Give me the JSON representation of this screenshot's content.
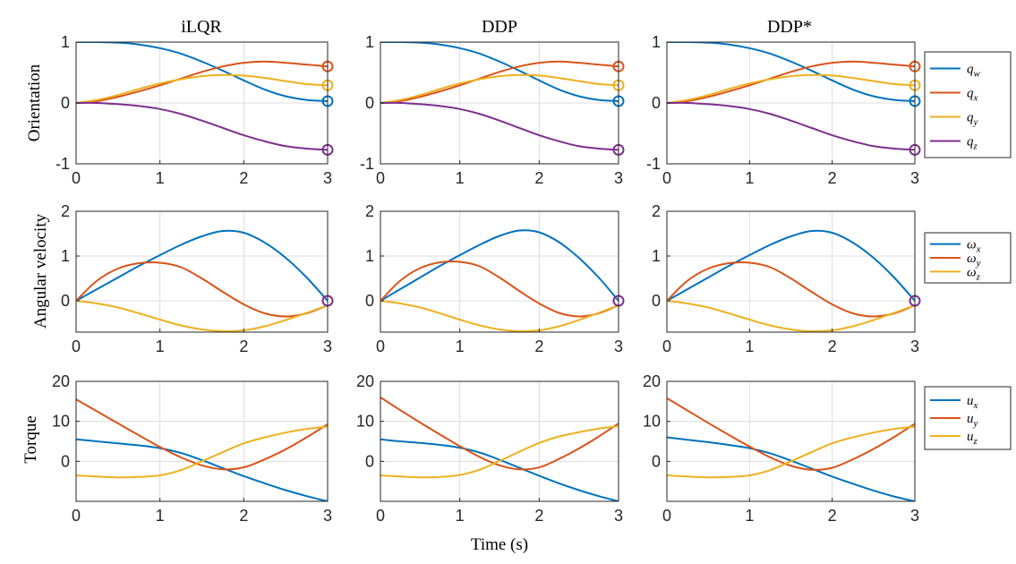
{
  "figure": {
    "xlabel": "Time (s)",
    "column_titles": [
      "iLQR",
      "DDP",
      "DDP*"
    ],
    "row_labels": [
      "Orientation",
      "Angular velocity",
      "Torque"
    ]
  },
  "colors": {
    "blue": "#0072BD",
    "orange": "#D95319",
    "yellow": "#EDB120",
    "purple": "#7E2F8E",
    "grid": "#dcdcdc",
    "axis": "#262626"
  },
  "legends": [
    {
      "entries": [
        {
          "base": "q",
          "sub": "w",
          "color": "#0072BD"
        },
        {
          "base": "q",
          "sub": "x",
          "color": "#D95319"
        },
        {
          "base": "q",
          "sub": "y",
          "color": "#EDB120"
        },
        {
          "base": "q",
          "sub": "z",
          "color": "#7E2F8E"
        }
      ]
    },
    {
      "entries": [
        {
          "base": "ω",
          "sub": "x",
          "color": "#0072BD"
        },
        {
          "base": "ω",
          "sub": "y",
          "color": "#D95319"
        },
        {
          "base": "ω",
          "sub": "z",
          "color": "#EDB120"
        }
      ]
    },
    {
      "entries": [
        {
          "base": "u",
          "sub": "x",
          "color": "#0072BD"
        },
        {
          "base": "u",
          "sub": "y",
          "color": "#D95319"
        },
        {
          "base": "u",
          "sub": "z",
          "color": "#EDB120"
        }
      ]
    }
  ],
  "chart_data": [
    {
      "type": "line",
      "row": 0,
      "col": 0,
      "title": "iLQR",
      "ylabel": "Orientation",
      "xlim": [
        0,
        3
      ],
      "ylim": [
        -1,
        1
      ],
      "xticks": [
        0,
        1,
        2,
        3
      ],
      "yticks": [
        -1,
        0,
        1
      ],
      "ytick_labels": [
        "-1",
        "0",
        "1"
      ],
      "x": [
        0,
        0.25,
        0.5,
        0.75,
        1.0,
        1.25,
        1.5,
        1.75,
        2.0,
        2.25,
        2.5,
        2.75,
        3.0
      ],
      "series": [
        {
          "name": "q_w",
          "color": "#0072BD",
          "values": [
            1.0,
            1.0,
            0.99,
            0.96,
            0.9,
            0.81,
            0.68,
            0.53,
            0.37,
            0.22,
            0.11,
            0.05,
            0.03
          ]
        },
        {
          "name": "q_x",
          "color": "#D95319",
          "values": [
            0,
            0.03,
            0.1,
            0.19,
            0.29,
            0.4,
            0.51,
            0.6,
            0.66,
            0.68,
            0.66,
            0.63,
            0.6
          ]
        },
        {
          "name": "q_y",
          "color": "#EDB120",
          "values": [
            0,
            0.05,
            0.13,
            0.23,
            0.32,
            0.39,
            0.44,
            0.46,
            0.45,
            0.41,
            0.36,
            0.31,
            0.29
          ]
        },
        {
          "name": "q_z",
          "color": "#7E2F8E",
          "values": [
            0,
            0.0,
            -0.02,
            -0.05,
            -0.1,
            -0.18,
            -0.29,
            -0.41,
            -0.53,
            -0.63,
            -0.71,
            -0.75,
            -0.77
          ]
        }
      ],
      "endpoint_markers": [
        {
          "x": 3,
          "y": 0.6,
          "color": "#D95319"
        },
        {
          "x": 3,
          "y": 0.29,
          "color": "#EDB120"
        },
        {
          "x": 3,
          "y": 0.03,
          "color": "#0072BD"
        },
        {
          "x": 3,
          "y": -0.77,
          "color": "#7E2F8E"
        }
      ]
    },
    {
      "type": "line",
      "row": 0,
      "col": 1,
      "title": "DDP",
      "ylabel": "",
      "xlim": [
        0,
        3
      ],
      "ylim": [
        -1,
        1
      ],
      "xticks": [
        0,
        1,
        2,
        3
      ],
      "yticks": [
        -1,
        0,
        1
      ],
      "ytick_labels": [
        "-1",
        "0",
        "1"
      ],
      "x": [
        0,
        0.25,
        0.5,
        0.75,
        1.0,
        1.25,
        1.5,
        1.75,
        2.0,
        2.25,
        2.5,
        2.75,
        3.0
      ],
      "series": [
        {
          "name": "q_w",
          "color": "#0072BD",
          "values": [
            1.0,
            1.0,
            0.99,
            0.96,
            0.9,
            0.81,
            0.68,
            0.53,
            0.37,
            0.22,
            0.11,
            0.05,
            0.03
          ]
        },
        {
          "name": "q_x",
          "color": "#D95319",
          "values": [
            0,
            0.03,
            0.1,
            0.19,
            0.29,
            0.4,
            0.51,
            0.6,
            0.66,
            0.68,
            0.66,
            0.63,
            0.6
          ]
        },
        {
          "name": "q_y",
          "color": "#EDB120",
          "values": [
            0,
            0.05,
            0.13,
            0.23,
            0.32,
            0.39,
            0.44,
            0.46,
            0.45,
            0.41,
            0.36,
            0.31,
            0.29
          ]
        },
        {
          "name": "q_z",
          "color": "#7E2F8E",
          "values": [
            0,
            0.0,
            -0.02,
            -0.05,
            -0.1,
            -0.18,
            -0.29,
            -0.41,
            -0.53,
            -0.63,
            -0.71,
            -0.75,
            -0.77
          ]
        }
      ],
      "endpoint_markers": [
        {
          "x": 3,
          "y": 0.6,
          "color": "#D95319"
        },
        {
          "x": 3,
          "y": 0.29,
          "color": "#EDB120"
        },
        {
          "x": 3,
          "y": 0.03,
          "color": "#0072BD"
        },
        {
          "x": 3,
          "y": -0.77,
          "color": "#7E2F8E"
        }
      ]
    },
    {
      "type": "line",
      "row": 0,
      "col": 2,
      "title": "DDP*",
      "ylabel": "",
      "xlim": [
        0,
        3
      ],
      "ylim": [
        -1,
        1
      ],
      "xticks": [
        0,
        1,
        2,
        3
      ],
      "yticks": [
        -1,
        0,
        1
      ],
      "ytick_labels": [
        "-1",
        "0",
        "1"
      ],
      "x": [
        0,
        0.25,
        0.5,
        0.75,
        1.0,
        1.25,
        1.5,
        1.75,
        2.0,
        2.25,
        2.5,
        2.75,
        3.0
      ],
      "series": [
        {
          "name": "q_w",
          "color": "#0072BD",
          "values": [
            1.0,
            1.0,
            0.99,
            0.96,
            0.9,
            0.81,
            0.68,
            0.53,
            0.37,
            0.22,
            0.11,
            0.05,
            0.03
          ]
        },
        {
          "name": "q_x",
          "color": "#D95319",
          "values": [
            0,
            0.03,
            0.1,
            0.19,
            0.29,
            0.4,
            0.51,
            0.6,
            0.66,
            0.68,
            0.66,
            0.63,
            0.6
          ]
        },
        {
          "name": "q_y",
          "color": "#EDB120",
          "values": [
            0,
            0.05,
            0.13,
            0.23,
            0.32,
            0.39,
            0.44,
            0.46,
            0.45,
            0.41,
            0.36,
            0.31,
            0.29
          ]
        },
        {
          "name": "q_z",
          "color": "#7E2F8E",
          "values": [
            0,
            0.0,
            -0.02,
            -0.05,
            -0.1,
            -0.18,
            -0.29,
            -0.41,
            -0.53,
            -0.63,
            -0.71,
            -0.75,
            -0.77
          ]
        }
      ],
      "endpoint_markers": [
        {
          "x": 3,
          "y": 0.6,
          "color": "#D95319"
        },
        {
          "x": 3,
          "y": 0.29,
          "color": "#EDB120"
        },
        {
          "x": 3,
          "y": 0.03,
          "color": "#0072BD"
        },
        {
          "x": 3,
          "y": -0.77,
          "color": "#7E2F8E"
        }
      ]
    },
    {
      "type": "line",
      "row": 1,
      "col": 0,
      "title": "",
      "ylabel": "Angular velocity",
      "xlim": [
        0,
        3
      ],
      "ylim": [
        -0.7,
        2
      ],
      "xticks": [
        0,
        1,
        2,
        3
      ],
      "yticks": [
        0,
        1,
        2
      ],
      "ytick_labels": [
        "0",
        "1",
        "2"
      ],
      "x": [
        0,
        0.25,
        0.5,
        0.75,
        1.0,
        1.25,
        1.5,
        1.75,
        2.0,
        2.25,
        2.5,
        2.75,
        3.0
      ],
      "series": [
        {
          "name": "ω_x",
          "color": "#0072BD",
          "values": [
            0,
            0.26,
            0.52,
            0.78,
            1.02,
            1.25,
            1.44,
            1.56,
            1.52,
            1.3,
            0.96,
            0.52,
            0
          ]
        },
        {
          "name": "ω_y",
          "color": "#D95319",
          "values": [
            0,
            0.45,
            0.72,
            0.84,
            0.85,
            0.75,
            0.5,
            0.2,
            -0.08,
            -0.28,
            -0.35,
            -0.28,
            -0.1
          ]
        },
        {
          "name": "ω_z",
          "color": "#EDB120",
          "values": [
            0,
            -0.06,
            -0.15,
            -0.28,
            -0.42,
            -0.55,
            -0.64,
            -0.68,
            -0.66,
            -0.57,
            -0.43,
            -0.27,
            -0.1
          ]
        }
      ],
      "endpoint_markers": [
        {
          "x": 3,
          "y": 0,
          "color": "#7E2F8E"
        }
      ]
    },
    {
      "type": "line",
      "row": 1,
      "col": 1,
      "title": "",
      "ylabel": "",
      "xlim": [
        0,
        3
      ],
      "ylim": [
        -0.7,
        2
      ],
      "xticks": [
        0,
        1,
        2,
        3
      ],
      "yticks": [
        0,
        1,
        2
      ],
      "ytick_labels": [
        "0",
        "1",
        "2"
      ],
      "x": [
        0,
        0.25,
        0.5,
        0.75,
        1.0,
        1.25,
        1.5,
        1.75,
        2.0,
        2.25,
        2.5,
        2.75,
        3.0
      ],
      "series": [
        {
          "name": "ω_x",
          "color": "#0072BD",
          "values": [
            0,
            0.26,
            0.52,
            0.78,
            1.02,
            1.25,
            1.45,
            1.57,
            1.53,
            1.31,
            0.96,
            0.52,
            0
          ]
        },
        {
          "name": "ω_y",
          "color": "#D95319",
          "values": [
            0,
            0.45,
            0.73,
            0.86,
            0.87,
            0.77,
            0.52,
            0.22,
            -0.06,
            -0.27,
            -0.35,
            -0.28,
            -0.1
          ]
        },
        {
          "name": "ω_z",
          "color": "#EDB120",
          "values": [
            0,
            -0.06,
            -0.15,
            -0.28,
            -0.42,
            -0.55,
            -0.64,
            -0.68,
            -0.66,
            -0.57,
            -0.43,
            -0.27,
            -0.1
          ]
        }
      ],
      "endpoint_markers": [
        {
          "x": 3,
          "y": 0,
          "color": "#7E2F8E"
        }
      ]
    },
    {
      "type": "line",
      "row": 1,
      "col": 2,
      "title": "",
      "ylabel": "",
      "xlim": [
        0,
        3
      ],
      "ylim": [
        -0.7,
        2
      ],
      "xticks": [
        0,
        1,
        2,
        3
      ],
      "yticks": [
        0,
        1,
        2
      ],
      "ytick_labels": [
        "0",
        "1",
        "2"
      ],
      "x": [
        0,
        0.25,
        0.5,
        0.75,
        1.0,
        1.25,
        1.5,
        1.75,
        2.0,
        2.25,
        2.5,
        2.75,
        3.0
      ],
      "series": [
        {
          "name": "ω_x",
          "color": "#0072BD",
          "values": [
            0,
            0.26,
            0.52,
            0.78,
            1.02,
            1.25,
            1.44,
            1.56,
            1.52,
            1.3,
            0.96,
            0.52,
            0
          ]
        },
        {
          "name": "ω_y",
          "color": "#D95319",
          "values": [
            0,
            0.45,
            0.72,
            0.84,
            0.85,
            0.75,
            0.5,
            0.2,
            -0.08,
            -0.28,
            -0.35,
            -0.28,
            -0.1
          ]
        },
        {
          "name": "ω_z",
          "color": "#EDB120",
          "values": [
            0,
            -0.06,
            -0.15,
            -0.28,
            -0.42,
            -0.55,
            -0.64,
            -0.68,
            -0.66,
            -0.57,
            -0.43,
            -0.27,
            -0.1
          ]
        }
      ],
      "endpoint_markers": [
        {
          "x": 3,
          "y": 0,
          "color": "#7E2F8E"
        }
      ]
    },
    {
      "type": "line",
      "row": 2,
      "col": 0,
      "title": "",
      "ylabel": "Torque",
      "xlim": [
        0,
        3
      ],
      "ylim": [
        -10,
        20
      ],
      "xticks": [
        0,
        1,
        2,
        3
      ],
      "yticks": [
        0,
        10,
        20
      ],
      "ytick_labels": [
        "0",
        "10",
        "20"
      ],
      "x": [
        0,
        0.25,
        0.5,
        0.75,
        1.0,
        1.25,
        1.5,
        1.75,
        2.0,
        2.25,
        2.5,
        2.75,
        3.0
      ],
      "series": [
        {
          "name": "u_x",
          "color": "#0072BD",
          "values": [
            5.5,
            5.0,
            4.5,
            4.0,
            3.3,
            2.1,
            0.3,
            -1.7,
            -3.7,
            -5.5,
            -7.2,
            -8.7,
            -10.0
          ]
        },
        {
          "name": "u_y",
          "color": "#D95319",
          "values": [
            15.5,
            12.5,
            9.5,
            6.5,
            3.6,
            1.0,
            -1.0,
            -2.0,
            -1.5,
            0.5,
            3.0,
            6.0,
            9.3
          ]
        },
        {
          "name": "u_z",
          "color": "#EDB120",
          "values": [
            -3.5,
            -3.8,
            -4.0,
            -3.9,
            -3.5,
            -2.2,
            0.0,
            2.3,
            4.5,
            6.0,
            7.2,
            8.1,
            8.7
          ]
        }
      ],
      "endpoint_markers": []
    },
    {
      "type": "line",
      "row": 2,
      "col": 1,
      "title": "",
      "ylabel": "",
      "xlim": [
        0,
        3
      ],
      "ylim": [
        -10,
        20
      ],
      "xticks": [
        0,
        1,
        2,
        3
      ],
      "yticks": [
        0,
        10,
        20
      ],
      "ytick_labels": [
        "0",
        "10",
        "20"
      ],
      "x": [
        0,
        0.25,
        0.5,
        0.75,
        1.0,
        1.25,
        1.5,
        1.75,
        2.0,
        2.25,
        2.5,
        2.75,
        3.0
      ],
      "series": [
        {
          "name": "u_x",
          "color": "#0072BD",
          "values": [
            5.5,
            5.0,
            4.6,
            4.1,
            3.4,
            2.2,
            0.4,
            -1.6,
            -3.6,
            -5.5,
            -7.2,
            -8.7,
            -10.0
          ]
        },
        {
          "name": "u_y",
          "color": "#D95319",
          "values": [
            16.0,
            12.8,
            9.7,
            6.7,
            3.8,
            1.1,
            -1.0,
            -2.0,
            -1.5,
            0.6,
            3.2,
            6.2,
            9.5
          ]
        },
        {
          "name": "u_z",
          "color": "#EDB120",
          "values": [
            -3.5,
            -3.8,
            -4.0,
            -3.9,
            -3.4,
            -2.1,
            0.1,
            2.4,
            4.6,
            6.2,
            7.3,
            8.2,
            8.8
          ]
        }
      ],
      "endpoint_markers": []
    },
    {
      "type": "line",
      "row": 2,
      "col": 2,
      "title": "",
      "ylabel": "",
      "xlim": [
        0,
        3
      ],
      "ylim": [
        -10,
        20
      ],
      "xticks": [
        0,
        1,
        2,
        3
      ],
      "yticks": [
        0,
        10,
        20
      ],
      "ytick_labels": [
        "0",
        "10",
        "20"
      ],
      "x": [
        0,
        0.25,
        0.5,
        0.75,
        1.0,
        1.25,
        1.5,
        1.75,
        2.0,
        2.25,
        2.5,
        2.75,
        3.0
      ],
      "series": [
        {
          "name": "u_x",
          "color": "#0072BD",
          "values": [
            6.0,
            5.4,
            4.8,
            4.1,
            3.3,
            2.0,
            0.2,
            -1.8,
            -3.8,
            -5.6,
            -7.3,
            -8.8,
            -10.0
          ]
        },
        {
          "name": "u_y",
          "color": "#D95319",
          "values": [
            15.8,
            12.7,
            9.6,
            6.6,
            3.7,
            1.0,
            -1.1,
            -2.1,
            -1.6,
            0.5,
            3.1,
            6.1,
            9.4
          ]
        },
        {
          "name": "u_z",
          "color": "#EDB120",
          "values": [
            -3.5,
            -3.8,
            -4.0,
            -3.9,
            -3.5,
            -2.2,
            0.0,
            2.3,
            4.5,
            6.0,
            7.2,
            8.1,
            8.7
          ]
        }
      ],
      "endpoint_markers": []
    }
  ]
}
